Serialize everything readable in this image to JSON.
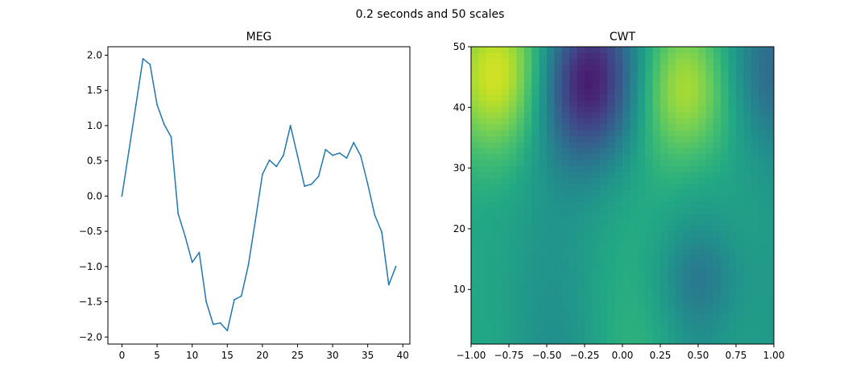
{
  "figure": {
    "suptitle": "0.2 seconds and 50 scales"
  },
  "chart_data": [
    {
      "type": "line",
      "title": "MEG",
      "xlabel": "",
      "ylabel": "",
      "xlim": [
        -2,
        41
      ],
      "ylim": [
        -2.1,
        2.12
      ],
      "xticks": [
        0,
        5,
        10,
        15,
        20,
        25,
        30,
        35,
        40
      ],
      "xtick_labels": [
        "0",
        "5",
        "10",
        "15",
        "20",
        "25",
        "30",
        "35",
        "40"
      ],
      "yticks": [
        -2.0,
        -1.5,
        -1.0,
        -0.5,
        0.0,
        0.5,
        1.0,
        1.5,
        2.0
      ],
      "ytick_labels": [
        "−2.0",
        "−1.5",
        "−1.0",
        "−0.5",
        "0.0",
        "0.5",
        "1.0",
        "1.5",
        "2.0"
      ],
      "grid": false,
      "series": [
        {
          "color": "#1f77b4",
          "x": [
            0,
            1,
            2,
            3,
            4,
            5,
            6,
            7,
            8,
            9,
            10,
            11,
            12,
            13,
            14,
            15,
            16,
            17,
            18,
            19,
            20,
            21,
            22,
            23,
            24,
            25,
            26,
            27,
            28,
            29,
            30,
            31,
            32,
            33,
            34,
            35,
            36,
            37,
            38,
            39
          ],
          "y": [
            0.0,
            0.65,
            1.3,
            1.95,
            1.87,
            1.3,
            1.02,
            0.84,
            -0.25,
            -0.57,
            -0.94,
            -0.8,
            -1.5,
            -1.82,
            -1.8,
            -1.91,
            -1.47,
            -1.42,
            -0.98,
            -0.35,
            0.31,
            0.51,
            0.42,
            0.58,
            1.0,
            0.57,
            0.14,
            0.17,
            0.28,
            0.66,
            0.58,
            0.61,
            0.54,
            0.76,
            0.57,
            0.17,
            -0.27,
            -0.51,
            -1.26,
            -1.0
          ]
        }
      ]
    },
    {
      "type": "heatmap",
      "title": "CWT",
      "xlabel": "",
      "ylabel": "",
      "xlim": [
        -1.0,
        1.0
      ],
      "ylim": [
        1,
        50
      ],
      "xticks": [
        -1.0,
        -0.75,
        -0.5,
        -0.25,
        0.0,
        0.25,
        0.5,
        0.75,
        1.0
      ],
      "xtick_labels": [
        "−1.00",
        "−0.75",
        "−0.50",
        "−0.25",
        "0.00",
        "0.25",
        "0.50",
        "0.75",
        "1.00"
      ],
      "yticks": [
        10,
        20,
        30,
        40,
        50
      ],
      "ytick_labels": [
        "10",
        "20",
        "30",
        "40",
        "50"
      ],
      "colormap": "viridis",
      "cols": 40,
      "rows": 50,
      "features": [
        {
          "kind": "high",
          "x": -0.75,
          "y": 45.5,
          "strength": 1.0
        },
        {
          "kind": "low",
          "x": -0.25,
          "y": 44.5,
          "strength": 1.0
        },
        {
          "kind": "high",
          "x": 0.42,
          "y": 43.5,
          "strength": 0.85
        },
        {
          "kind": "low",
          "x": 0.95,
          "y": 46,
          "strength": 0.45
        },
        {
          "kind": "low",
          "x": 0.5,
          "y": 12,
          "strength": 0.2
        }
      ]
    }
  ]
}
